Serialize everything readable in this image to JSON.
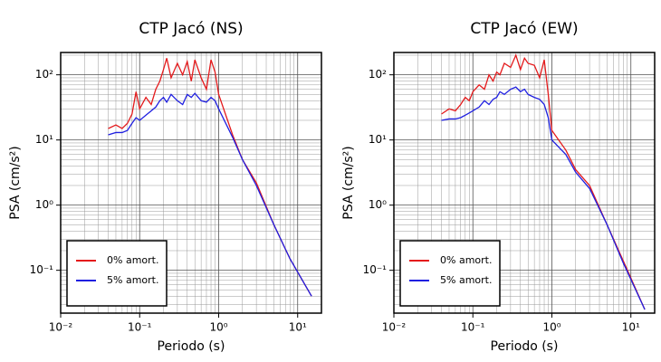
{
  "chart_data": [
    {
      "type": "line",
      "title": "CTP Jacó (NS)",
      "x_label": "Periodo (s)",
      "y_label": "PSA (cm/s²)",
      "log_x": true,
      "log_y": true,
      "grid": true,
      "minor_grid": true,
      "legend": "lower left",
      "x": [
        0.04,
        0.05,
        0.06,
        0.07,
        0.08,
        0.09,
        0.1,
        0.12,
        0.14,
        0.16,
        0.18,
        0.2,
        0.22,
        0.25,
        0.3,
        0.35,
        0.4,
        0.45,
        0.5,
        0.6,
        0.7,
        0.8,
        0.9,
        1.0,
        1.5,
        2,
        3,
        5,
        8,
        15
      ],
      "series": [
        {
          "name": "0% amort.",
          "color": "#e41a1c",
          "values": [
            15,
            17,
            15,
            18,
            25,
            55,
            30,
            45,
            35,
            60,
            80,
            120,
            180,
            90,
            150,
            100,
            160,
            80,
            170,
            90,
            60,
            170,
            110,
            50,
            12,
            5,
            2.2,
            0.5,
            0.15,
            0.04
          ]
        },
        {
          "name": "5% amort.",
          "color": "#1f1fe0",
          "values": [
            12,
            13,
            13,
            14,
            18,
            22,
            20,
            24,
            28,
            32,
            40,
            45,
            38,
            50,
            40,
            35,
            50,
            45,
            52,
            40,
            38,
            45,
            40,
            30,
            11,
            5,
            2,
            0.5,
            0.15,
            0.04
          ]
        }
      ],
      "xlim": [
        0.01,
        20
      ],
      "ylim": [
        0.022,
        220
      ],
      "xticks": [
        {
          "value": 0.01,
          "label": "10⁻²"
        },
        {
          "value": 0.1,
          "label": "10⁻¹"
        },
        {
          "value": 1,
          "label": "10⁰"
        },
        {
          "value": 10,
          "label": "10¹"
        }
      ],
      "yticks": [
        {
          "value": 0.1,
          "label": "10⁻¹"
        },
        {
          "value": 1,
          "label": "10⁰"
        },
        {
          "value": 10,
          "label": "10¹"
        },
        {
          "value": 100,
          "label": "10²"
        }
      ]
    },
    {
      "type": "line",
      "title": "CTP Jacó (EW)",
      "x_label": "Periodo (s)",
      "y_label": "PSA (cm/s²)",
      "log_x": true,
      "log_y": true,
      "grid": true,
      "minor_grid": true,
      "legend": "lower left",
      "x": [
        0.04,
        0.05,
        0.06,
        0.07,
        0.08,
        0.09,
        0.1,
        0.12,
        0.14,
        0.16,
        0.18,
        0.2,
        0.22,
        0.25,
        0.3,
        0.35,
        0.4,
        0.45,
        0.5,
        0.6,
        0.7,
        0.8,
        0.9,
        1.0,
        1.5,
        2,
        3,
        5,
        8,
        15
      ],
      "series": [
        {
          "name": "0% amort.",
          "color": "#e41a1c",
          "values": [
            25,
            30,
            28,
            35,
            45,
            40,
            55,
            70,
            60,
            100,
            80,
            110,
            100,
            150,
            130,
            200,
            120,
            180,
            150,
            140,
            90,
            170,
            50,
            14,
            7,
            3.5,
            2,
            0.5,
            0.14,
            0.025
          ]
        },
        {
          "name": "5% amort.",
          "color": "#1f1fe0",
          "values": [
            20,
            21,
            21,
            22,
            24,
            26,
            28,
            32,
            40,
            35,
            42,
            45,
            55,
            50,
            60,
            65,
            55,
            60,
            50,
            45,
            42,
            35,
            22,
            10,
            6,
            3.2,
            1.8,
            0.5,
            0.13,
            0.025
          ]
        }
      ],
      "xlim": [
        0.01,
        20
      ],
      "ylim": [
        0.022,
        220
      ],
      "xticks": [
        {
          "value": 0.01,
          "label": "10⁻²"
        },
        {
          "value": 0.1,
          "label": "10⁻¹"
        },
        {
          "value": 1,
          "label": "10⁰"
        },
        {
          "value": 10,
          "label": "10¹"
        }
      ],
      "yticks": [
        {
          "value": 0.1,
          "label": "10⁻¹"
        },
        {
          "value": 1,
          "label": "10⁰"
        },
        {
          "value": 10,
          "label": "10¹"
        },
        {
          "value": 100,
          "label": "10²"
        }
      ]
    }
  ]
}
